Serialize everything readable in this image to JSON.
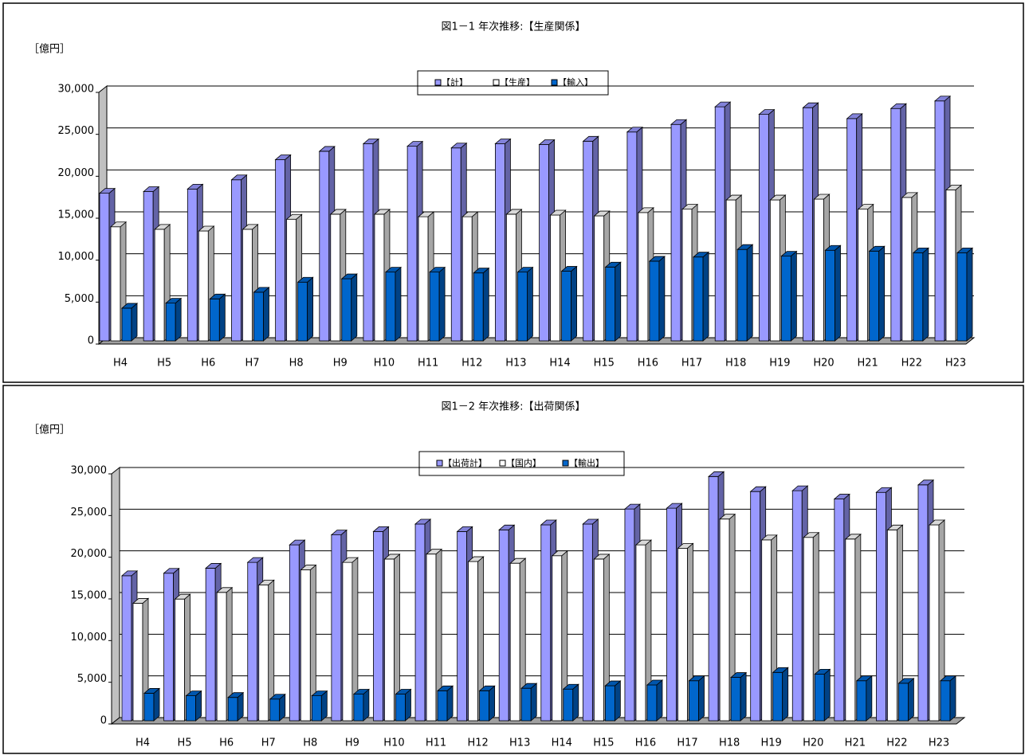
{
  "chart_data": [
    {
      "type": "bar",
      "title": "図1－1 年次推移:【生産関係】",
      "y_label": "［億円］",
      "categories": [
        "H4",
        "H5",
        "H6",
        "H7",
        "H8",
        "H9",
        "H10",
        "H11",
        "H12",
        "H13",
        "H14",
        "H15",
        "H16",
        "H17",
        "H18",
        "H19",
        "H20",
        "H21",
        "H22",
        "H23"
      ],
      "series": [
        {
          "name": "【計】",
          "color": "#9999ff",
          "values": [
            17600,
            17800,
            18100,
            19200,
            21600,
            22600,
            23500,
            23200,
            23000,
            23500,
            23400,
            23800,
            24900,
            25800,
            27900,
            27000,
            27800,
            26500,
            27700,
            28600
          ]
        },
        {
          "name": "【生産】",
          "color": "#ffffff",
          "values": [
            13600,
            13300,
            13100,
            13300,
            14500,
            15100,
            15100,
            14800,
            14800,
            15100,
            15000,
            14900,
            15300,
            15700,
            16800,
            16800,
            16900,
            15700,
            17100,
            18000
          ]
        },
        {
          "name": "【輸入】",
          "color": "#0066cc",
          "values": [
            3900,
            4500,
            5000,
            5800,
            7000,
            7400,
            8200,
            8200,
            8100,
            8200,
            8300,
            8800,
            9500,
            10000,
            10900,
            10100,
            10800,
            10700,
            10500,
            10500
          ]
        }
      ],
      "ylim": [
        0,
        30000
      ],
      "yticks": [
        0,
        {
          "value": 5000,
          "label": "5,000"
        },
        {
          "value": 10000,
          "label": "10,000"
        },
        {
          "value": 15000,
          "label": "15,000"
        },
        {
          "value": 20000,
          "label": "20,000"
        },
        {
          "value": 25000,
          "label": "25,000"
        },
        {
          "value": 30000,
          "label": "30,000"
        }
      ],
      "grid": true,
      "legend": "top"
    },
    {
      "type": "bar",
      "title": "図1－2 年次推移:【出荷関係】",
      "y_label": "［億円］",
      "categories": [
        "H4",
        "H5",
        "H6",
        "H7",
        "H8",
        "H9",
        "H10",
        "H11",
        "H12",
        "H13",
        "H14",
        "H15",
        "H16",
        "H17",
        "H18",
        "H19",
        "H20",
        "H21",
        "H22",
        "H23"
      ],
      "series": [
        {
          "name": "【出荷計】",
          "color": "#9999ff",
          "values": [
            17400,
            17700,
            18300,
            19000,
            21100,
            22300,
            22700,
            23600,
            22700,
            22900,
            23500,
            23600,
            25400,
            25500,
            29300,
            27500,
            27600,
            26600,
            27400,
            28300
          ]
        },
        {
          "name": "【国内】",
          "color": "#ffffff",
          "values": [
            14100,
            14600,
            15400,
            16300,
            18100,
            19000,
            19400,
            20000,
            19100,
            18900,
            19800,
            19400,
            21100,
            20700,
            24200,
            21700,
            22000,
            21800,
            22900,
            23500
          ]
        },
        {
          "name": "【輸出】",
          "color": "#0066cc",
          "values": [
            3300,
            3000,
            2800,
            2600,
            3000,
            3200,
            3200,
            3600,
            3600,
            3900,
            3800,
            4200,
            4300,
            4800,
            5200,
            5800,
            5600,
            4800,
            4500,
            4800
          ]
        }
      ],
      "ylim": [
        0,
        30000
      ],
      "yticks": [
        0,
        {
          "value": 5000,
          "label": "5,000"
        },
        {
          "value": 10000,
          "label": "10,000"
        },
        {
          "value": 15000,
          "label": "15,000"
        },
        {
          "value": 20000,
          "label": "20,000"
        },
        {
          "value": 25000,
          "label": "25,000"
        },
        {
          "value": 30000,
          "label": "30,000"
        }
      ],
      "grid": true,
      "legend": "top"
    }
  ]
}
